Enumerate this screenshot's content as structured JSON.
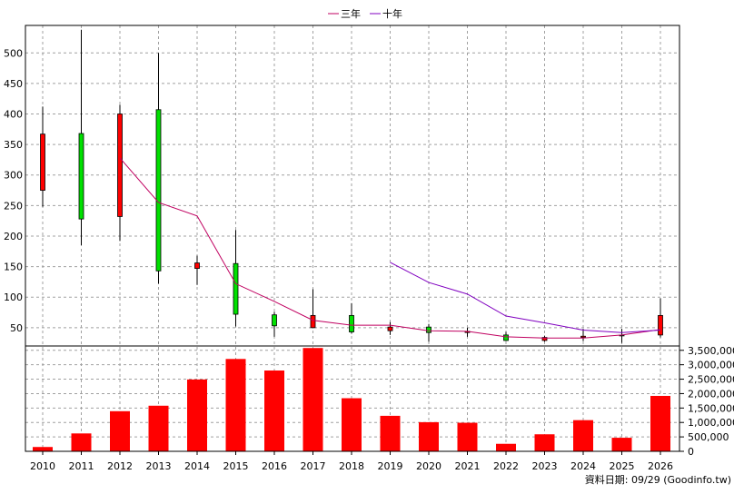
{
  "legend": {
    "three_year_label": "三年",
    "ten_year_label": "十年"
  },
  "footer": {
    "source": "資料日期: 09/29 (Goodinfo.tw)"
  },
  "colors": {
    "up": "#ff0000",
    "down": "#00e000",
    "ma3": "#c00060",
    "ma10": "#8000c0",
    "volume": "#ff0000"
  },
  "chart_data": [
    {
      "type": "candlestick",
      "title": "",
      "x": [
        "2010",
        "2011",
        "2012",
        "2013",
        "2014",
        "2015",
        "2016",
        "2017",
        "2018",
        "2019",
        "2020",
        "2021",
        "2022",
        "2023",
        "2024",
        "2025",
        "2026"
      ],
      "ylim": [
        20,
        545
      ],
      "yticks": [
        50,
        100,
        150,
        200,
        250,
        300,
        350,
        400,
        450,
        500
      ],
      "grid": true,
      "legend_position": "top-center",
      "candles": [
        {
          "x": "2010",
          "open": 275,
          "high": 412,
          "low": 248,
          "close": 367
        },
        {
          "x": "2011",
          "open": 368,
          "high": 538,
          "low": 185,
          "close": 228
        },
        {
          "x": "2012",
          "open": 232,
          "high": 415,
          "low": 192,
          "close": 400
        },
        {
          "x": "2013",
          "open": 407,
          "high": 500,
          "low": 122,
          "close": 143
        },
        {
          "x": "2014",
          "open": 147,
          "high": 168,
          "low": 120,
          "close": 156
        },
        {
          "x": "2015",
          "open": 155,
          "high": 210,
          "low": 52,
          "close": 72
        },
        {
          "x": "2016",
          "open": 71,
          "high": 76,
          "low": 35,
          "close": 53
        },
        {
          "x": "2017",
          "open": 50,
          "high": 113,
          "low": 49,
          "close": 70
        },
        {
          "x": "2018",
          "open": 70,
          "high": 90,
          "low": 40,
          "close": 43
        },
        {
          "x": "2019",
          "open": 45,
          "high": 59,
          "low": 38,
          "close": 51
        },
        {
          "x": "2020",
          "open": 51,
          "high": 56,
          "low": 27,
          "close": 42
        },
        {
          "x": "2021",
          "open": 42,
          "high": 50,
          "low": 35,
          "close": 44
        },
        {
          "x": "2022",
          "open": 38,
          "high": 43,
          "low": 28,
          "close": 29
        },
        {
          "x": "2023",
          "open": 29,
          "high": 37,
          "low": 27,
          "close": 34
        },
        {
          "x": "2024",
          "open": 34,
          "high": 48,
          "low": 28,
          "close": 36
        },
        {
          "x": "2025",
          "open": 38,
          "high": 48,
          "low": 25,
          "close": 37
        },
        {
          "x": "2026",
          "open": 38,
          "high": 98,
          "low": 34,
          "close": 70
        }
      ],
      "series": [
        {
          "name": "三年",
          "x": [
            "2012",
            "2013",
            "2014",
            "2015",
            "2016",
            "2017",
            "2018",
            "2019",
            "2020",
            "2021",
            "2022",
            "2023",
            "2024",
            "2025",
            "2026"
          ],
          "values": [
            328,
            255,
            233,
            122,
            93,
            62,
            54,
            54,
            45,
            44,
            35,
            33,
            33,
            38,
            47
          ]
        },
        {
          "name": "十年",
          "x": [
            "2019",
            "2020",
            "2021",
            "2022",
            "2023",
            "2024",
            "2025",
            "2026"
          ],
          "values": [
            157,
            124,
            105,
            69,
            58,
            46,
            42,
            46
          ]
        }
      ]
    },
    {
      "type": "bar",
      "title": "",
      "categories": [
        "2010",
        "2011",
        "2012",
        "2013",
        "2014",
        "2015",
        "2016",
        "2017",
        "2018",
        "2019",
        "2020",
        "2021",
        "2022",
        "2023",
        "2024",
        "2025",
        "2026"
      ],
      "values": [
        150000,
        620000,
        1390000,
        1580000,
        2490000,
        3200000,
        2800000,
        3580000,
        1840000,
        1230000,
        1010000,
        990000,
        260000,
        590000,
        1080000,
        470000,
        1920000
      ],
      "ylim": [
        0,
        3650000
      ],
      "yticks": [
        0,
        500000,
        1000000,
        1500000,
        2000000,
        2500000,
        3000000,
        3500000
      ],
      "ytick_labels": [
        "0",
        "500,000",
        "1,000,000",
        "1,500,000",
        "2,000,000",
        "2,500,000",
        "3,000,000",
        "3,500,000"
      ]
    }
  ]
}
